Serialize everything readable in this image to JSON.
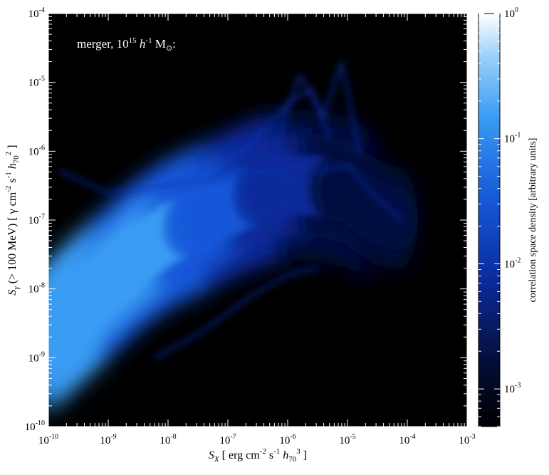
{
  "chart_data": {
    "type": "heatmap",
    "title": "",
    "annotation": "merger, 10^15 h^-1 M_sun:",
    "xlabel": "S_X [ erg cm^-2 s^-1 h_70^3 ]",
    "ylabel": "S_gamma (> 100 MeV) [ gamma cm^-2 s^-1 h_70^2 ]",
    "x_scale": "log",
    "y_scale": "log",
    "xlim": [
      1e-10,
      0.001
    ],
    "ylim": [
      1e-10,
      0.0001
    ],
    "x_ticks": [
      "10^-10",
      "10^-9",
      "10^-8",
      "10^-7",
      "10^-6",
      "10^-5",
      "10^-4",
      "10^-3"
    ],
    "y_ticks": [
      "10^-10",
      "10^-9",
      "10^-8",
      "10^-7",
      "10^-6",
      "10^-5",
      "10^-4"
    ],
    "colorbar": {
      "label": "correlation space density [arbitrary units]",
      "scale": "log",
      "ticks": [
        "10^-3",
        "10^-2",
        "10^-1",
        "10^0"
      ],
      "range": [
        0.0005,
        1
      ]
    },
    "colormap": [
      "#000000",
      "#06103f",
      "#0b2a9a",
      "#1558d8",
      "#3a9cf2",
      "#ffffff"
    ],
    "density_ridge": {
      "description_points_log": [
        {
          "x": -10.0,
          "y_center": -8.7,
          "density": 0.3
        },
        {
          "x": -9.5,
          "y_center": -8.3,
          "density": 0.22
        },
        {
          "x": -9.0,
          "y_center": -7.9,
          "density": 0.2
        },
        {
          "x": -8.5,
          "y_center": -7.5,
          "density": 0.15
        },
        {
          "x": -8.0,
          "y_center": -7.2,
          "density": 0.1
        },
        {
          "x": -7.5,
          "y_center": -7.0,
          "density": 0.06
        },
        {
          "x": -7.0,
          "y_center": -6.8,
          "density": 0.03
        },
        {
          "x": -6.5,
          "y_center": -6.6,
          "density": 0.015
        },
        {
          "x": -6.0,
          "y_center": -6.5,
          "density": 0.008
        },
        {
          "x": -5.5,
          "y_center": -6.5,
          "density": 0.004
        },
        {
          "x": -5.0,
          "y_center": -6.6,
          "density": 0.003
        },
        {
          "x": -4.5,
          "y_center": -6.9,
          "density": 0.002
        },
        {
          "x": -4.1,
          "y_center": -7.0,
          "density": 0.0015
        }
      ]
    }
  }
}
